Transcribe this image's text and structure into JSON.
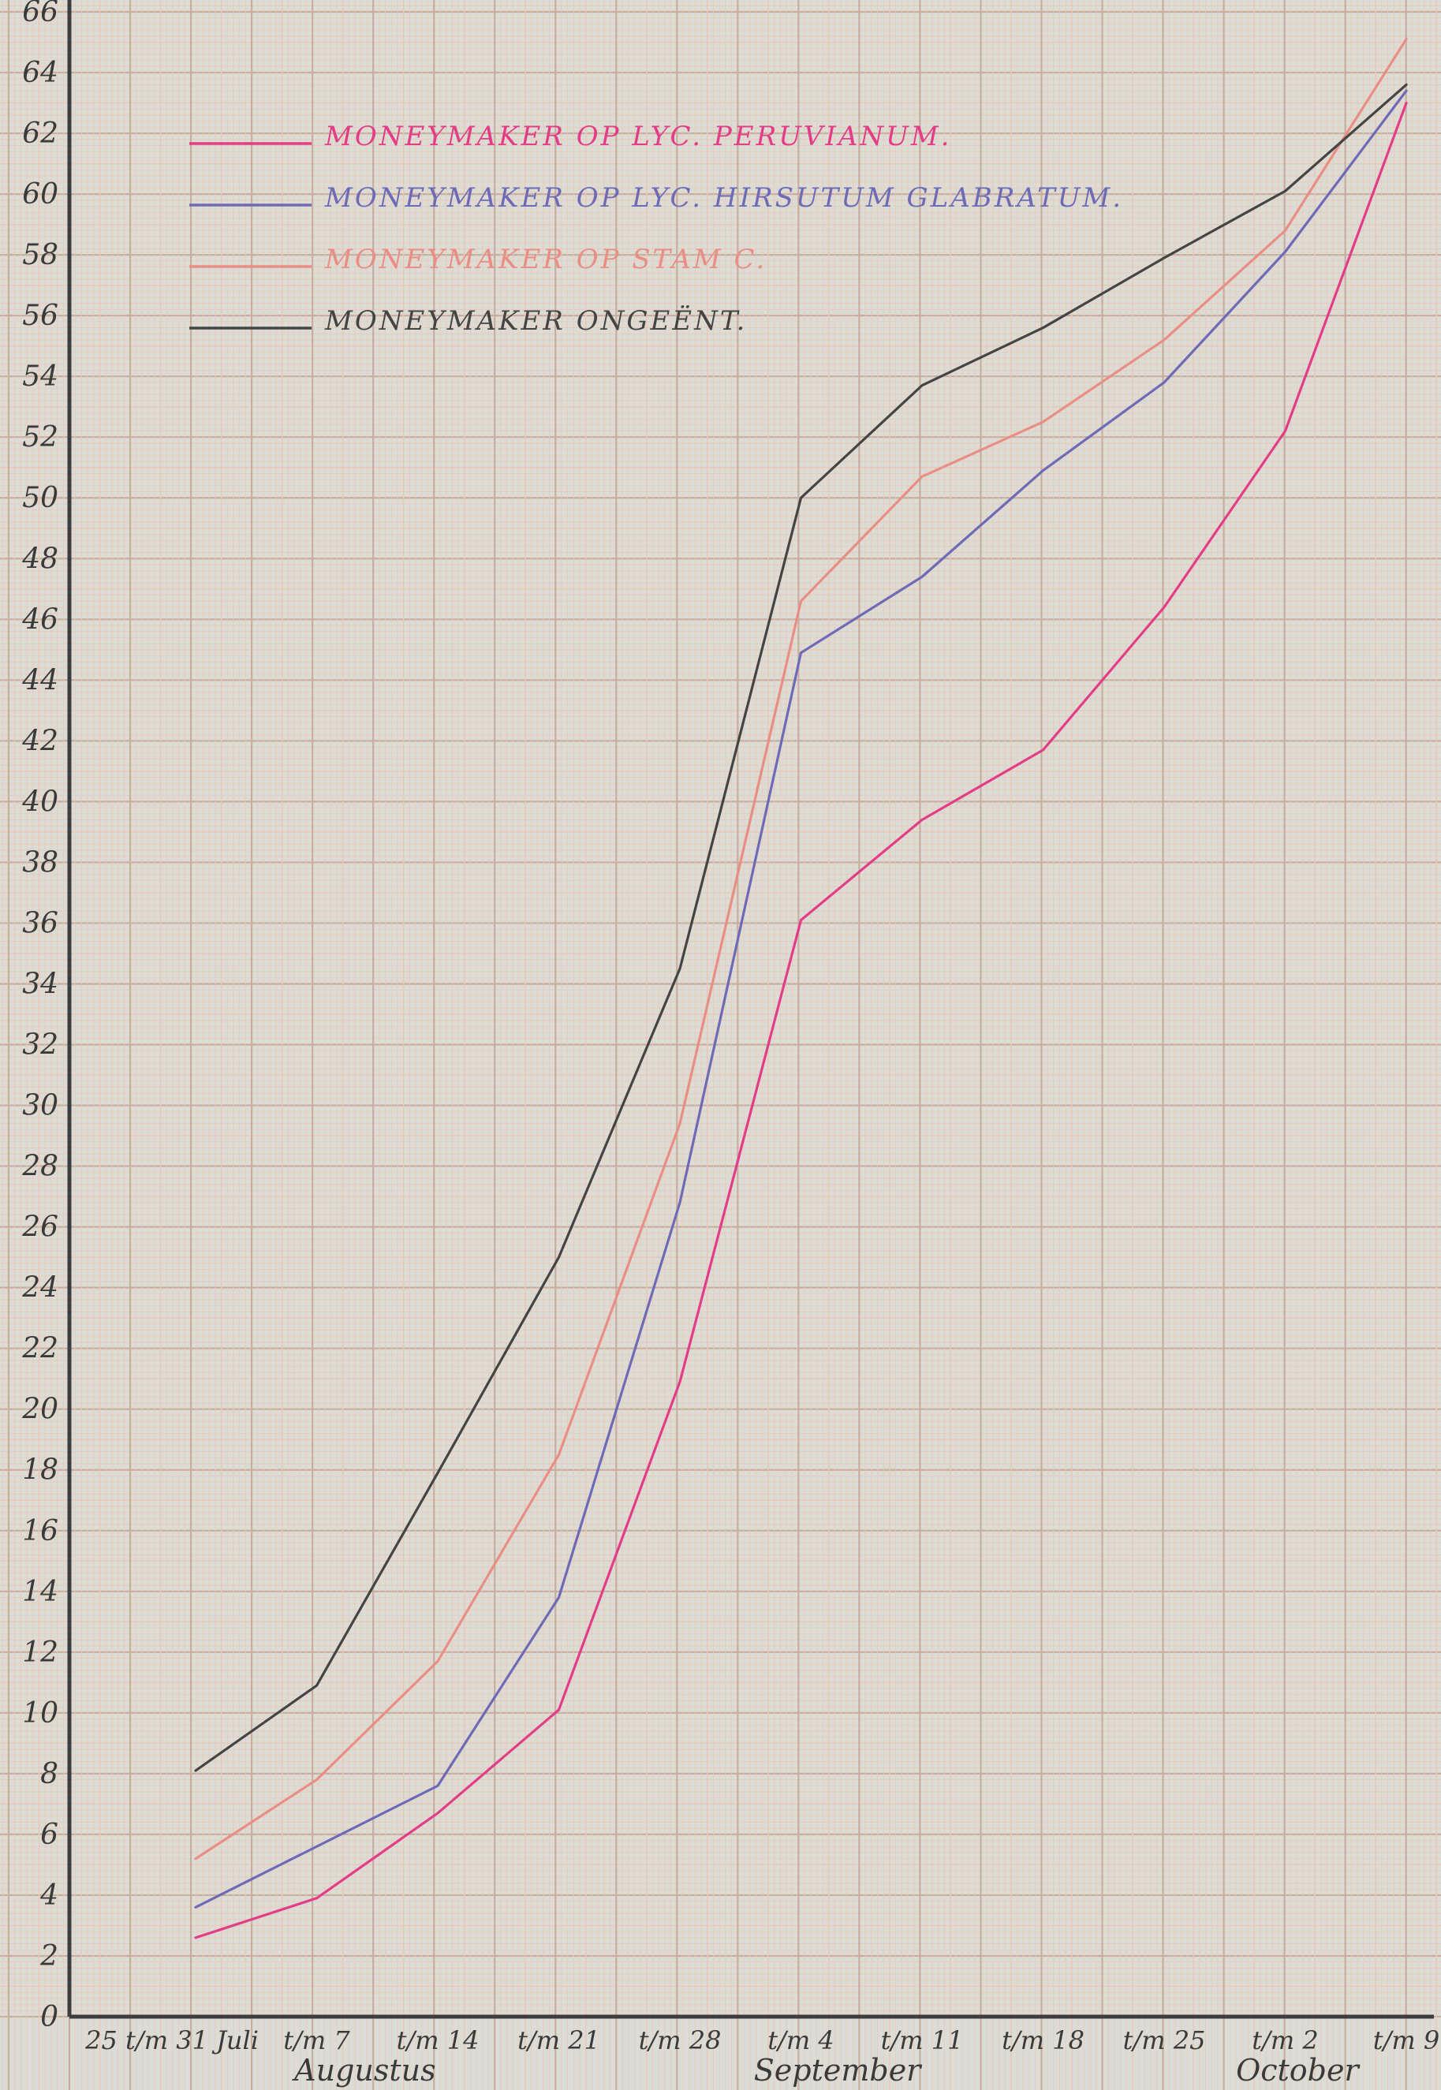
{
  "chart_data": {
    "type": "line",
    "title": "",
    "xlabel": "",
    "ylabel": "",
    "ylim": [
      0,
      66
    ],
    "yticks": [
      0,
      2,
      4,
      6,
      8,
      10,
      12,
      14,
      16,
      18,
      20,
      22,
      24,
      26,
      28,
      30,
      32,
      34,
      36,
      38,
      40,
      42,
      44,
      46,
      48,
      50,
      52,
      54,
      56,
      58,
      60,
      62,
      64,
      66
    ],
    "categories": [
      "25 t/m 31 Juli",
      "t/m 7",
      "t/m 14",
      "t/m 21",
      "t/m 28",
      "t/m 4",
      "t/m 11",
      "t/m 18",
      "t/m 25",
      "t/m 2",
      "t/m 9"
    ],
    "months": [
      {
        "label": "Augustus",
        "category_index": 1.4
      },
      {
        "label": "September",
        "category_index": 5.3
      },
      {
        "label": "October",
        "category_index": 9.1
      }
    ],
    "grid": true,
    "legend_position": "top-left",
    "colors": {
      "minor_grid": "#e9c8b6",
      "major_grid": "#c9ad9d",
      "axis": "#3d3d3d"
    },
    "series": [
      {
        "name": "MONEYMAKER OP LYC. PERUVIANUM.",
        "color": "#e23d86",
        "values": [
          2.6,
          3.9,
          6.7,
          10.1,
          20.9,
          36.1,
          39.4,
          41.7,
          46.4,
          52.2,
          63.0
        ]
      },
      {
        "name": "MONEYMAKER OP LYC. HIRSUTUM GLABRATUM.",
        "color": "#6e6ab6",
        "values": [
          3.6,
          5.6,
          7.6,
          13.8,
          26.8,
          44.9,
          47.4,
          50.9,
          53.8,
          58.1,
          63.4
        ]
      },
      {
        "name": "MONEYMAKER OP STAM C.",
        "color": "#e98e84",
        "values": [
          5.2,
          7.8,
          11.7,
          18.5,
          29.4,
          46.6,
          50.7,
          52.5,
          55.2,
          58.8,
          65.1
        ]
      },
      {
        "name": "MONEYMAKER ONGEËNT.",
        "color": "#444444",
        "values": [
          8.1,
          10.9,
          17.9,
          25.0,
          34.5,
          50.0,
          53.7,
          55.6,
          57.9,
          60.1,
          63.6
        ]
      }
    ]
  }
}
